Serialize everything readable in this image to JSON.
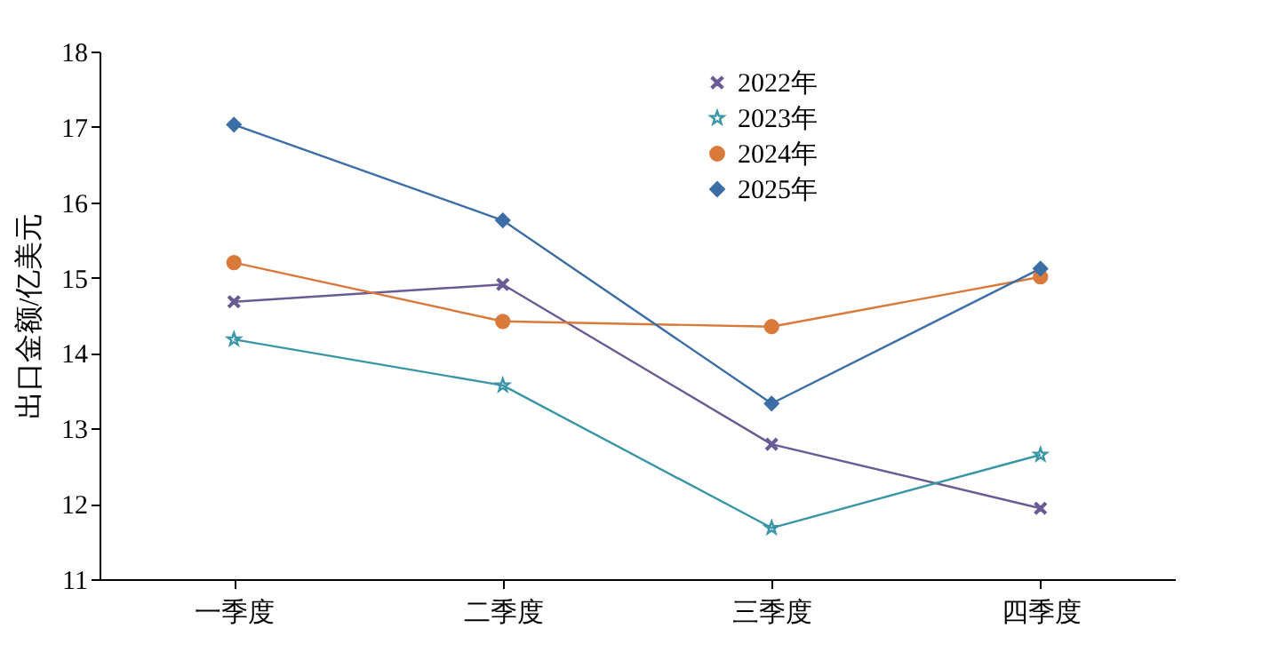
{
  "chart_data": {
    "type": "line",
    "ylabel": "出口金额/亿美元",
    "categories": [
      "一季度",
      "二季度",
      "三季度",
      "四季度"
    ],
    "series": [
      {
        "name": "2022年",
        "color": "#6b5b95",
        "marker": "cross",
        "values": [
          14.68,
          14.91,
          12.79,
          11.94
        ]
      },
      {
        "name": "2023年",
        "color": "#3a96a6",
        "marker": "star",
        "values": [
          14.18,
          13.57,
          11.68,
          12.65
        ]
      },
      {
        "name": "2024年",
        "color": "#d9793a",
        "marker": "circle",
        "values": [
          15.2,
          14.42,
          14.35,
          15.01
        ]
      },
      {
        "name": "2025年",
        "color": "#3c6ea5",
        "marker": "diamond",
        "values": [
          17.03,
          15.76,
          13.33,
          15.12
        ]
      }
    ],
    "ylim": [
      11,
      18
    ],
    "yticks": [
      11,
      12,
      13,
      14,
      15,
      16,
      17,
      18
    ],
    "grid": false,
    "legend": "top",
    "line_style": "solid"
  }
}
